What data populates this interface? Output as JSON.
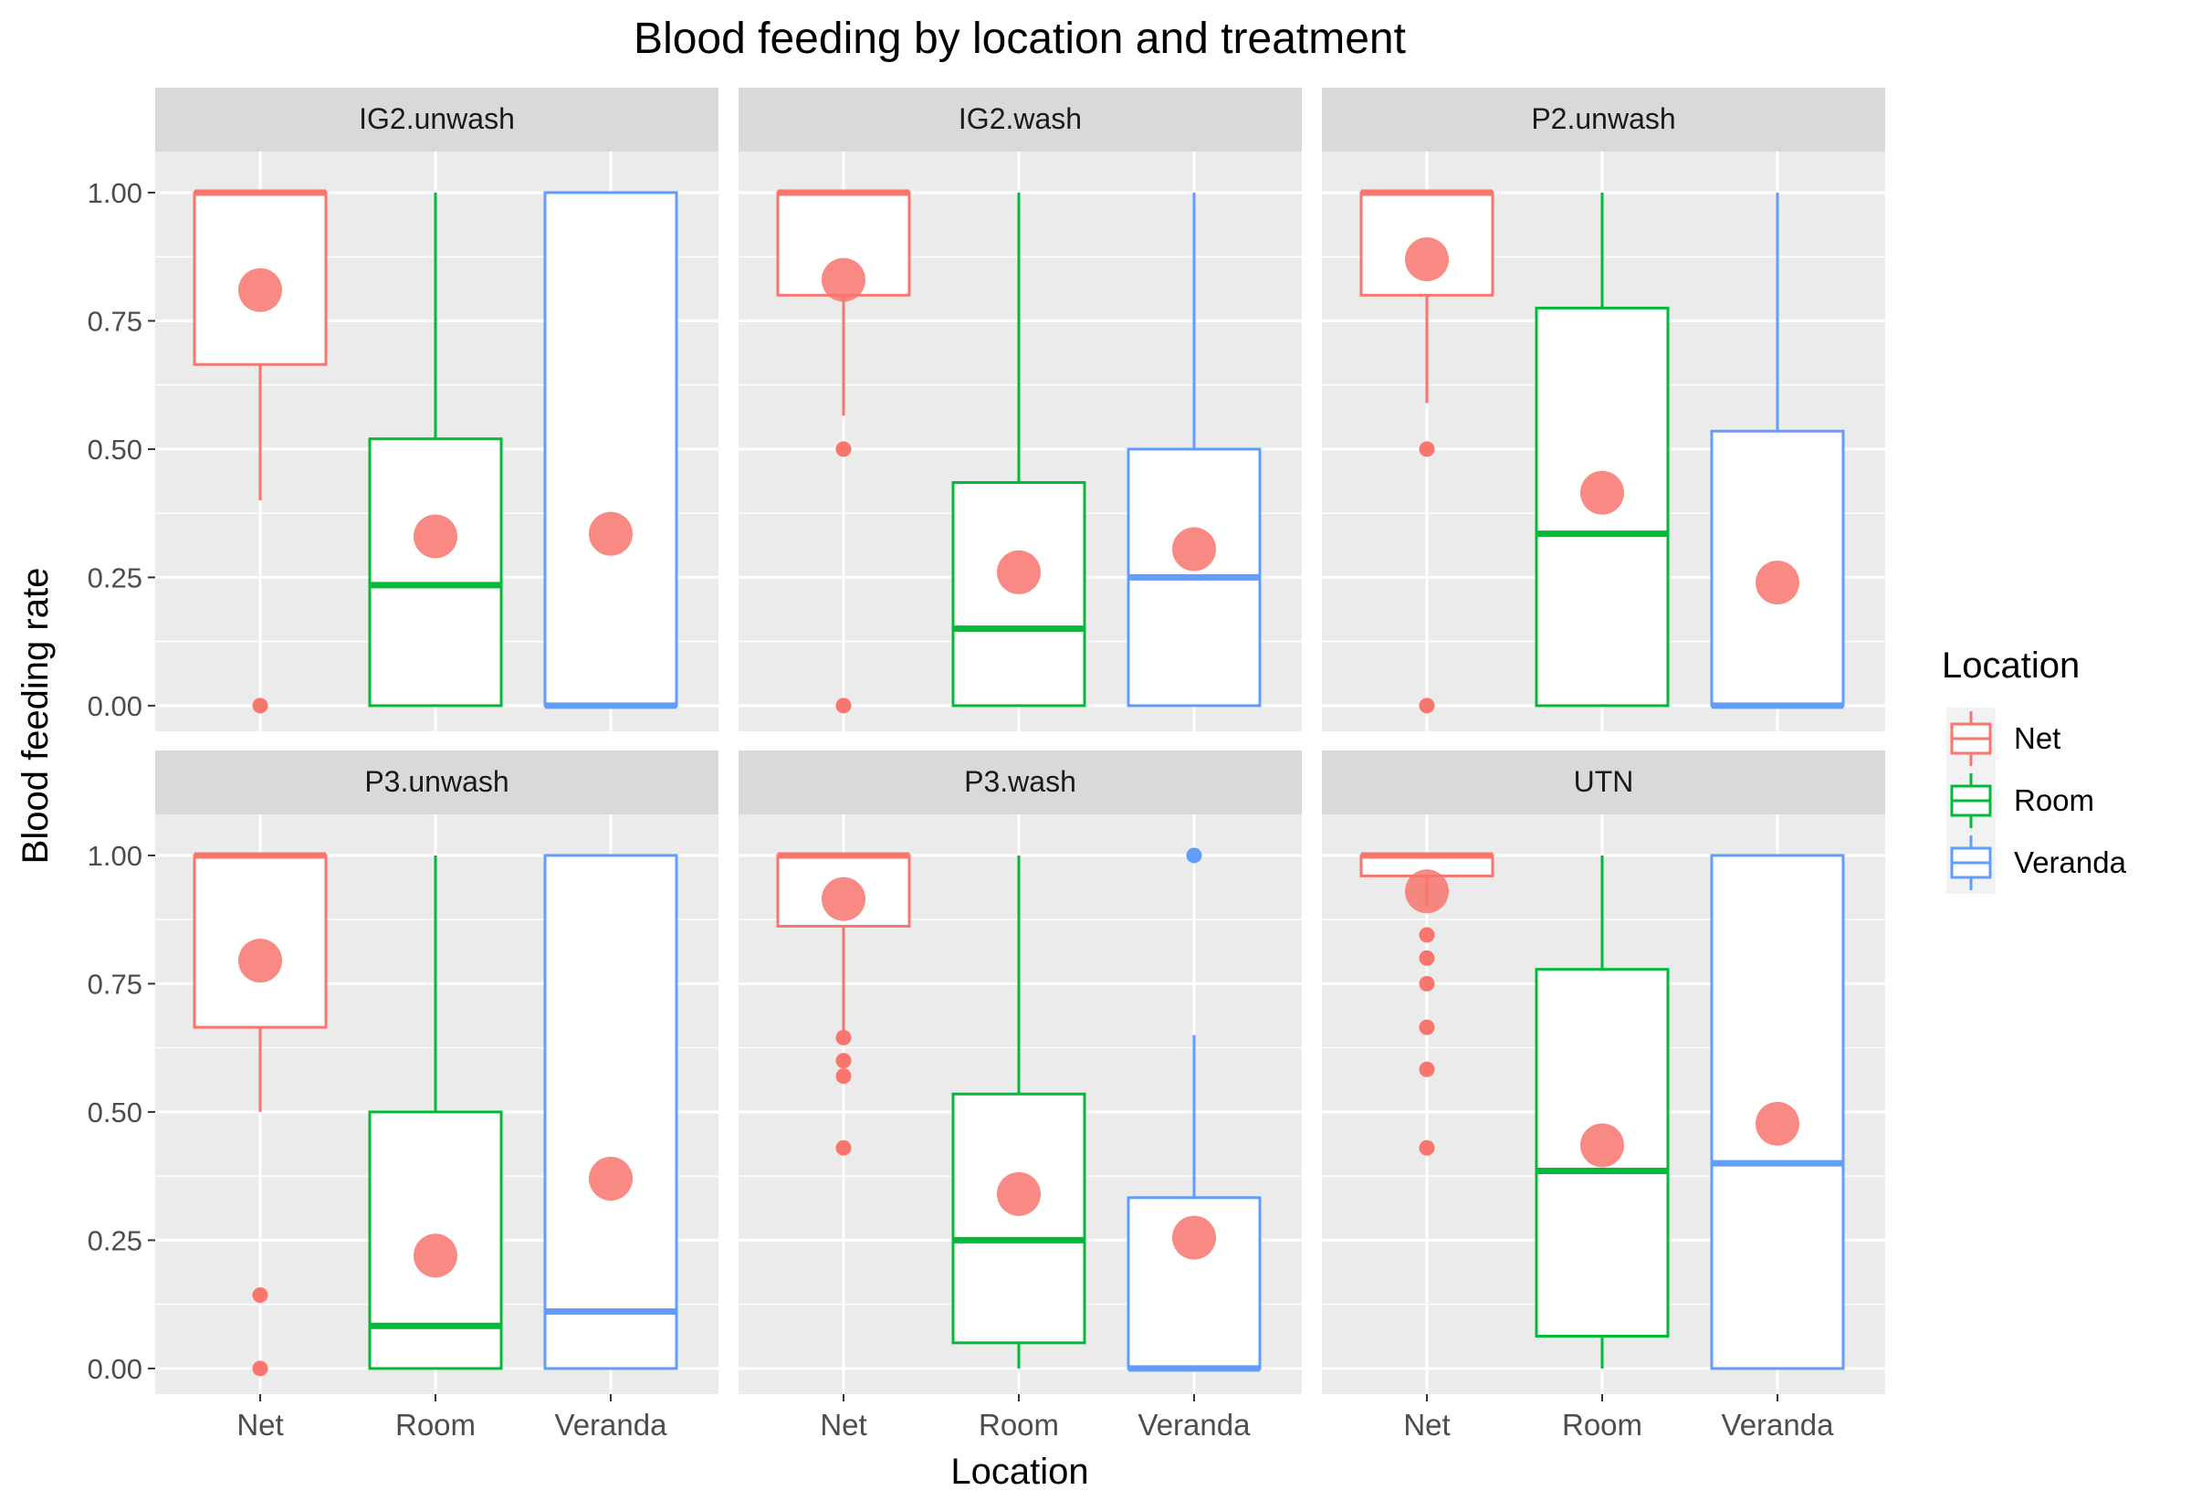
{
  "chart_data": {
    "type": "boxplot",
    "title": "Blood feeding by location and treatment",
    "xlabel": "Location",
    "ylabel": "Blood feeding rate",
    "ylim": [
      -0.05,
      1.08
    ],
    "yticks": [
      "0.00",
      "0.25",
      "0.50",
      "0.75",
      "1.00"
    ],
    "ytick_values": [
      0,
      0.25,
      0.5,
      0.75,
      1
    ],
    "categories": [
      "Net",
      "Room",
      "Veranda"
    ],
    "legend": {
      "title": "Location",
      "position": "right",
      "entries": [
        "Net",
        "Room",
        "Veranda"
      ]
    },
    "colors": {
      "Net": "#F8766D",
      "Room": "#00BA38",
      "Veranda": "#619CFF",
      "mean_point": "#F8766D",
      "panel_bg": "#EBEBEB",
      "strip_bg": "#D9D9D9",
      "grid": "#FFFFFF"
    },
    "grid": true,
    "mean_marker": "large translucent point",
    "panels": [
      {
        "label": "IG2.unwash",
        "groups": [
          {
            "location": "Net",
            "q1": 0.665,
            "median": 1.0,
            "q3": 1.0,
            "whisker_low": 0.4,
            "whisker_high": 1.0,
            "mean": 0.81,
            "outliers": [
              0.0
            ]
          },
          {
            "location": "Room",
            "q1": 0.0,
            "median": 0.235,
            "q3": 0.52,
            "whisker_low": 0.0,
            "whisker_high": 1.0,
            "mean": 0.33,
            "outliers": []
          },
          {
            "location": "Veranda",
            "q1": 0.0,
            "median": 0.0,
            "q3": 1.0,
            "whisker_low": 0.0,
            "whisker_high": 1.0,
            "mean": 0.335,
            "outliers": []
          }
        ]
      },
      {
        "label": "IG2.wash",
        "groups": [
          {
            "location": "Net",
            "q1": 0.8,
            "median": 1.0,
            "q3": 1.0,
            "whisker_low": 0.565,
            "whisker_high": 1.0,
            "mean": 0.83,
            "outliers": [
              0.5,
              0.0
            ]
          },
          {
            "location": "Room",
            "q1": 0.0,
            "median": 0.15,
            "q3": 0.435,
            "whisker_low": 0.0,
            "whisker_high": 1.0,
            "mean": 0.26,
            "outliers": []
          },
          {
            "location": "Veranda",
            "q1": 0.0,
            "median": 0.25,
            "q3": 0.5,
            "whisker_low": 0.0,
            "whisker_high": 1.0,
            "mean": 0.305,
            "outliers": []
          }
        ]
      },
      {
        "label": "P2.unwash",
        "groups": [
          {
            "location": "Net",
            "q1": 0.8,
            "median": 1.0,
            "q3": 1.0,
            "whisker_low": 0.59,
            "whisker_high": 1.0,
            "mean": 0.87,
            "outliers": [
              0.5,
              0.0
            ]
          },
          {
            "location": "Room",
            "q1": 0.0,
            "median": 0.335,
            "q3": 0.775,
            "whisker_low": 0.0,
            "whisker_high": 1.0,
            "mean": 0.415,
            "outliers": []
          },
          {
            "location": "Veranda",
            "q1": 0.0,
            "median": 0.0,
            "q3": 0.535,
            "whisker_low": 0.0,
            "whisker_high": 1.0,
            "mean": 0.24,
            "outliers": []
          }
        ]
      },
      {
        "label": "P3.unwash",
        "groups": [
          {
            "location": "Net",
            "q1": 0.665,
            "median": 1.0,
            "q3": 1.0,
            "whisker_low": 0.5,
            "whisker_high": 1.0,
            "mean": 0.795,
            "outliers": [
              0.143,
              0.0
            ]
          },
          {
            "location": "Room",
            "q1": 0.0,
            "median": 0.083,
            "q3": 0.5,
            "whisker_low": 0.0,
            "whisker_high": 1.0,
            "mean": 0.22,
            "outliers": []
          },
          {
            "location": "Veranda",
            "q1": 0.0,
            "median": 0.111,
            "q3": 1.0,
            "whisker_low": 0.0,
            "whisker_high": 1.0,
            "mean": 0.37,
            "outliers": []
          }
        ]
      },
      {
        "label": "P3.wash",
        "groups": [
          {
            "location": "Net",
            "q1": 0.862,
            "median": 1.0,
            "q3": 1.0,
            "whisker_low": 0.65,
            "whisker_high": 1.0,
            "mean": 0.915,
            "outliers": [
              0.645,
              0.6,
              0.57,
              0.43
            ]
          },
          {
            "location": "Room",
            "q1": 0.05,
            "median": 0.25,
            "q3": 0.535,
            "whisker_low": 0.0,
            "whisker_high": 1.0,
            "mean": 0.34,
            "outliers": []
          },
          {
            "location": "Veranda",
            "q1": 0.0,
            "median": 0.0,
            "q3": 0.333,
            "whisker_low": 0.0,
            "whisker_high": 0.65,
            "mean": 0.255,
            "outliers": [
              1.0
            ]
          }
        ]
      },
      {
        "label": "UTN",
        "groups": [
          {
            "location": "Net",
            "q1": 0.96,
            "median": 1.0,
            "q3": 1.0,
            "whisker_low": 0.9,
            "whisker_high": 1.0,
            "mean": 0.93,
            "outliers": [
              0.845,
              0.8,
              0.75,
              0.665,
              0.583,
              0.43
            ]
          },
          {
            "location": "Room",
            "q1": 0.063,
            "median": 0.385,
            "q3": 0.778,
            "whisker_low": 0.0,
            "whisker_high": 1.0,
            "mean": 0.435,
            "outliers": []
          },
          {
            "location": "Veranda",
            "q1": 0.0,
            "median": 0.4,
            "q3": 1.0,
            "whisker_low": 0.0,
            "whisker_high": 1.0,
            "mean": 0.477,
            "outliers": []
          }
        ]
      }
    ]
  }
}
